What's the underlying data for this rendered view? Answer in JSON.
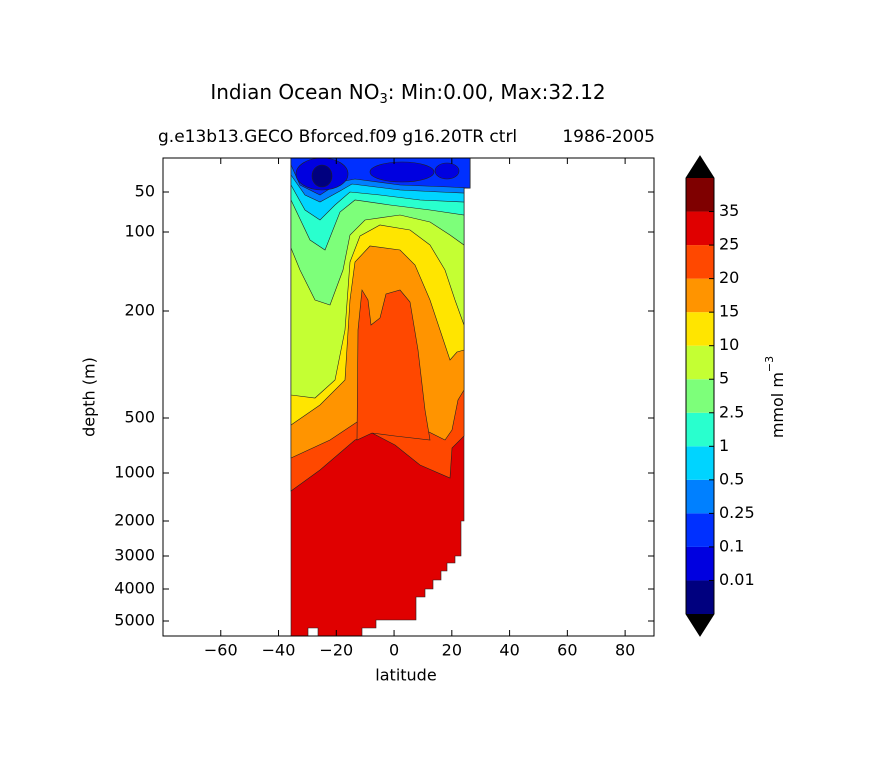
{
  "chart_data": {
    "type": "contour",
    "title_parts": [
      "Indian Ocean NO",
      "3",
      ": Min:0.00, Max:32.12"
    ],
    "subtitle_left": "g.e13b13.GECO Bforced.f09 g16.20TR ctrl",
    "subtitle_right": "1986-2005",
    "x_label": "latitude",
    "y_label": "depth (m)",
    "xlim": [
      -80,
      90
    ],
    "xticks": [
      {
        "value": -60,
        "label": "−60"
      },
      {
        "value": -40,
        "label": "−40"
      },
      {
        "value": -20,
        "label": "−20"
      },
      0,
      20,
      40,
      60,
      80
    ],
    "ylim": [
      0,
      5500
    ],
    "yticks": [
      50,
      100,
      200,
      500,
      1000,
      2000,
      3000,
      4000,
      5000
    ],
    "levels": [
      0.01,
      0.1,
      0.25,
      0.5,
      1,
      2.5,
      5,
      10,
      15,
      20,
      25,
      35
    ],
    "colors": [
      "#00007f",
      "#0000e0",
      "#0030ff",
      "#0080ff",
      "#00d4ff",
      "#29ffce",
      "#7dff7a",
      "#c4ff33",
      "#ffe500",
      "#ff9400",
      "#ff4800",
      "#e00000",
      "#7f0000"
    ],
    "extend_color": "#000000",
    "colorbar_label": "mmol m",
    "colorbar_label_exponent": "−3"
  }
}
